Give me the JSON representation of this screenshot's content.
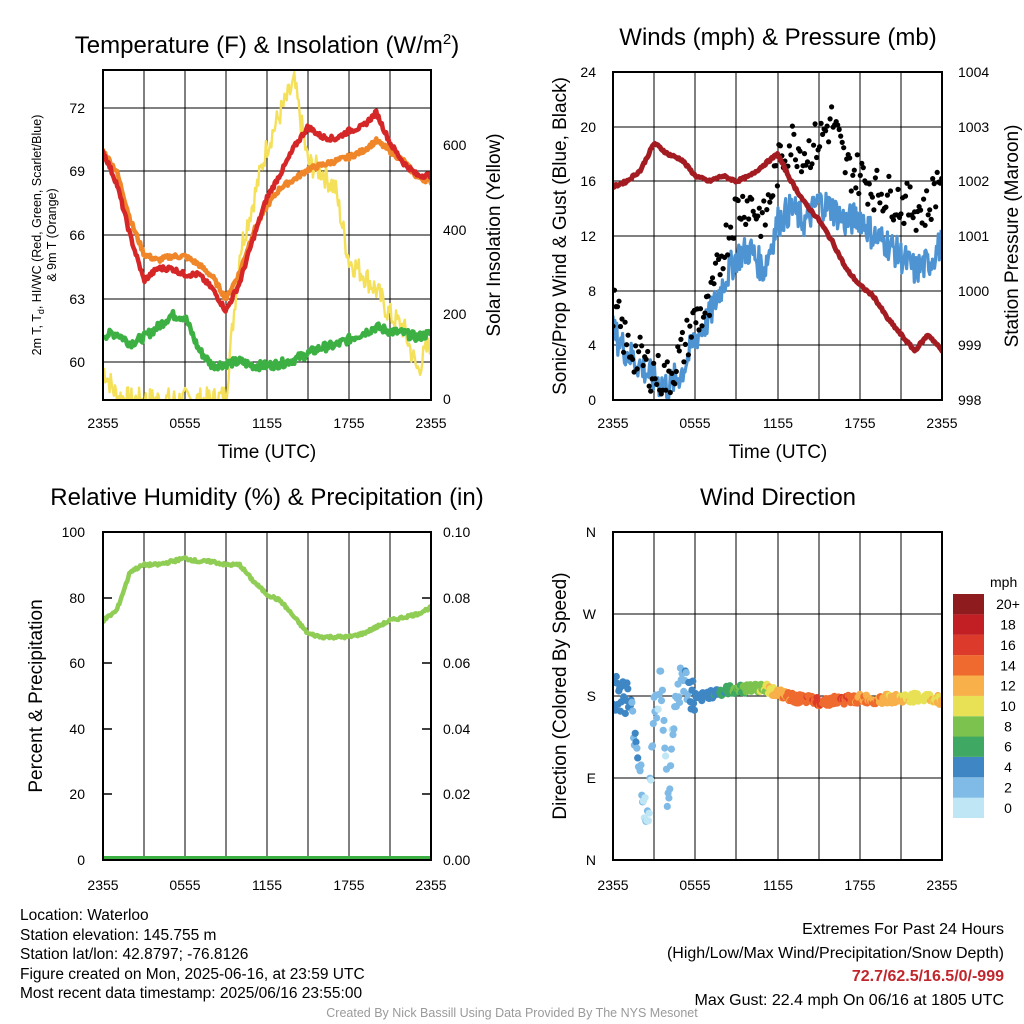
{
  "colors": {
    "t2m": "#d62728",
    "td": "#3cb043",
    "hiwc": "#e8322e",
    "t9m": "#f0862a",
    "solar": "#f5e05a",
    "wind": "#4e94d2",
    "gust": "#000000",
    "pressure": "#a31c22",
    "rh": "#8fcd55",
    "precip": "#3cb043"
  },
  "panels": {
    "temp": {
      "title_main": "Temperature (F) & Insolation (W/m",
      "title_sup": "2",
      "title_end": ")",
      "ylabel_left_1": "2m T, T",
      "ylabel_left_sub": "d",
      "ylabel_left_2": ", HI/WC (Red, Green, Scarlet/Blue)",
      "ylabel_left_3": "& 9m T (Orange)",
      "ylabel_right": "Solar Insolation (Yellow)",
      "xlabel": "Time (UTC)",
      "yticks_left": [
        "60",
        "63",
        "66",
        "69",
        "72"
      ],
      "yticks_right": [
        "0",
        "200",
        "400",
        "600"
      ],
      "xticks": [
        "2355",
        "0555",
        "1155",
        "1755",
        "2355"
      ]
    },
    "wind": {
      "title": "Winds (mph) & Pressure (mb)",
      "ylabel_left": "Sonic/Prop Wind & Gust (Blue, Black)",
      "ylabel_right": "Station Pressure (Maroon)",
      "xlabel": "Time (UTC)",
      "yticks_left": [
        "0",
        "4",
        "8",
        "12",
        "16",
        "20",
        "24"
      ],
      "yticks_right": [
        "998",
        "999",
        "1000",
        "1001",
        "1002",
        "1003",
        "1004"
      ],
      "xticks": [
        "2355",
        "0555",
        "1155",
        "1755",
        "2355"
      ]
    },
    "rh": {
      "title": "Relative Humidity (%) & Precipitation (in)",
      "ylabel_left": "Percent & Precipitation",
      "yticks_left": [
        "0",
        "20",
        "40",
        "60",
        "80",
        "100"
      ],
      "yticks_right": [
        "0.00",
        "0.02",
        "0.04",
        "0.06",
        "0.08",
        "0.10"
      ],
      "xticks": [
        "2355",
        "0555",
        "1155",
        "1755",
        "2355"
      ]
    },
    "dir": {
      "title": "Wind Direction",
      "ylabel_left": "Direction (Colored By Speed)",
      "yticks_left": [
        "N",
        "E",
        "S",
        "W",
        "N"
      ],
      "xticks": [
        "2355",
        "0555",
        "1155",
        "1755",
        "2355"
      ],
      "legend_title": "mph",
      "legend_labels": [
        "0",
        "2",
        "4",
        "6",
        "8",
        "10",
        "12",
        "14",
        "16",
        "18",
        "20+"
      ],
      "legend_colors": [
        "#bfe6f5",
        "#7fbbe6",
        "#3f86c4",
        "#3fa862",
        "#7cc24e",
        "#e8e155",
        "#f7b04a",
        "#ef6a2e",
        "#dc3a2a",
        "#c21f24",
        "#8e1b1e"
      ]
    }
  },
  "meta": {
    "location": "Location: Waterloo",
    "elevation": "Station elevation: 145.755 m",
    "latlon": "Station lat/lon: 42.8797; -76.8126",
    "created": "Figure created on Mon, 2025-06-16, at 23:59 UTC",
    "recent": "Most recent data timestamp: 2025/06/16 23:55:00"
  },
  "extremes": {
    "title": "Extremes For Past 24 Hours",
    "subtitle": "(High/Low/Max Wind/Precipitation/Snow Depth)",
    "values": "72.7/62.5/16.5/0/-999",
    "gust": "Max Gust: 22.4 mph On 06/16 at 1805 UTC"
  },
  "credit": "Created By Nick Bassill Using Data Provided By The NYS Mesonet",
  "chart_data": [
    {
      "type": "line",
      "title": "Temperature (F) & Insolation (W/m2)",
      "xlabel": "Time (UTC)",
      "x": [
        0,
        1,
        2,
        3,
        4,
        5,
        6,
        7,
        8,
        9,
        10,
        11,
        12,
        13,
        14,
        15,
        16,
        17,
        18,
        19,
        20,
        21,
        22,
        23,
        24
      ],
      "xtick_labels": [
        "2355",
        "0555",
        "1155",
        "1755",
        "2355"
      ],
      "xlim": [
        0,
        24
      ],
      "ylim": [
        58.3,
        74.6
      ],
      "y2lim": [
        0,
        780
      ],
      "series": [
        {
          "name": "2m T",
          "axis": "left",
          "values": [
            70.6,
            69.0,
            66.4,
            64.2,
            64.8,
            64.8,
            64.5,
            64.5,
            63.8,
            62.7,
            64.1,
            66.3,
            68.3,
            69.5,
            70.8,
            71.8,
            71.3,
            71.2,
            71.6,
            71.8,
            72.5,
            71.0,
            70.0,
            69.4,
            69.4
          ]
        },
        {
          "name": "Td",
          "axis": "left",
          "values": [
            61.5,
            61.6,
            61.1,
            61.4,
            61.9,
            62.5,
            62.4,
            60.8,
            60.0,
            60.1,
            60.2,
            60.0,
            60.0,
            60.1,
            60.3,
            60.6,
            60.9,
            61.0,
            61.3,
            61.6,
            61.9,
            61.7,
            61.6,
            61.4,
            61.6
          ]
        },
        {
          "name": "9m T",
          "axis": "left",
          "values": [
            70.6,
            69.6,
            67.2,
            65.5,
            65.2,
            65.4,
            65.4,
            65.0,
            64.4,
            63.3,
            64.6,
            66.6,
            67.9,
            68.8,
            69.2,
            69.7,
            69.9,
            70.1,
            70.3,
            70.6,
            71.1,
            70.6,
            70.1,
            69.3,
            69.1
          ]
        },
        {
          "name": "Solar",
          "axis": "right",
          "values": [
            75,
            10,
            0,
            0,
            0,
            0,
            0,
            0,
            0,
            10,
            350,
            470,
            600,
            680,
            750,
            560,
            540,
            500,
            330,
            300,
            260,
            200,
            170,
            70,
            140
          ]
        }
      ]
    },
    {
      "type": "line",
      "title": "Winds (mph) & Pressure (mb)",
      "xlabel": "Time (UTC)",
      "x": [
        0,
        1,
        2,
        3,
        4,
        5,
        6,
        7,
        8,
        9,
        10,
        11,
        12,
        13,
        14,
        15,
        16,
        17,
        18,
        19,
        20,
        21,
        22,
        23,
        24
      ],
      "xtick_labels": [
        "2355",
        "0555",
        "1155",
        "1755",
        "2355"
      ],
      "ylim": [
        0,
        24
      ],
      "y2lim": [
        998,
        1004
      ],
      "series": [
        {
          "name": "Sonic/Prop Wind",
          "axis": "left",
          "values": [
            5.0,
            3.5,
            2.5,
            1.5,
            1.0,
            2.0,
            4.5,
            6.0,
            8.5,
            10.5,
            11.0,
            9.5,
            13.0,
            14.0,
            13.0,
            14.5,
            14.0,
            13.0,
            13.5,
            12.0,
            11.5,
            10.5,
            9.5,
            10.0,
            11.5
          ]
        },
        {
          "name": "Gust",
          "axis": "left",
          "values": [
            7.0,
            4.0,
            3.0,
            2.0,
            1.5,
            3.5,
            6.0,
            6.5,
            11.0,
            14.0,
            14.5,
            13.0,
            17.0,
            19.0,
            18.0,
            19.0,
            20.5,
            17.0,
            16.5,
            15.5,
            15.0,
            14.5,
            14.0,
            14.0,
            17.0
          ]
        },
        {
          "name": "Station Pressure",
          "axis": "right",
          "values": [
            1001.9,
            1002.0,
            1002.2,
            1002.7,
            1002.5,
            1002.4,
            1002.1,
            1002.0,
            1002.1,
            1002.0,
            1002.1,
            1002.3,
            1002.5,
            1002.0,
            1001.6,
            1001.3,
            1000.9,
            1000.4,
            1000.1,
            999.9,
            999.5,
            999.2,
            998.9,
            999.2,
            998.9
          ]
        }
      ]
    },
    {
      "type": "line",
      "title": "Relative Humidity (%) & Precipitation (in)",
      "x": [
        0,
        1,
        2,
        3,
        4,
        5,
        6,
        7,
        8,
        9,
        10,
        11,
        12,
        13,
        14,
        15,
        16,
        17,
        18,
        19,
        20,
        21,
        22,
        23,
        24
      ],
      "xtick_labels": [
        "2355",
        "0555",
        "1155",
        "1755",
        "2355"
      ],
      "ylim": [
        0,
        100
      ],
      "y2lim": [
        0,
        0.1
      ],
      "series": [
        {
          "name": "RH",
          "axis": "left",
          "values": [
            73,
            76,
            88,
            90,
            90,
            91,
            92,
            91,
            91,
            90,
            90,
            85,
            81,
            79,
            74,
            69,
            68,
            68,
            68,
            69,
            71,
            73,
            74,
            75,
            77
          ]
        },
        {
          "name": "Precip",
          "axis": "right",
          "values": [
            0,
            0,
            0,
            0,
            0,
            0,
            0,
            0,
            0,
            0,
            0,
            0,
            0,
            0,
            0,
            0,
            0,
            0,
            0,
            0,
            0,
            0,
            0,
            0,
            0
          ]
        }
      ]
    },
    {
      "type": "scatter",
      "title": "Wind Direction",
      "x": [
        0,
        1,
        1.5,
        2,
        2.5,
        3,
        3.5,
        4,
        4.5,
        5,
        6,
        7,
        8,
        9,
        10,
        11,
        12,
        13,
        14,
        15,
        16,
        17,
        18,
        19,
        20,
        21,
        22,
        23,
        24
      ],
      "xtick_labels": [
        "2355",
        "0555",
        "1155",
        "1755",
        "2355"
      ],
      "ylim": [
        0,
        360
      ],
      "yticks": [
        "N",
        "E",
        "S",
        "W",
        "N"
      ],
      "direction_deg": [
        185,
        180,
        150,
        100,
        30,
        160,
        200,
        60,
        170,
        200,
        175,
        182,
        185,
        188,
        188,
        190,
        183,
        178,
        176,
        174,
        175,
        176,
        177,
        176,
        177,
        177,
        178,
        178,
        175
      ],
      "speed_mph": [
        4,
        4,
        3,
        2,
        1,
        2,
        1,
        2,
        1,
        2,
        4,
        4,
        5,
        7,
        8,
        9,
        12,
        14,
        14,
        15,
        14,
        15,
        13,
        13,
        12,
        11,
        10,
        10,
        11
      ]
    }
  ]
}
